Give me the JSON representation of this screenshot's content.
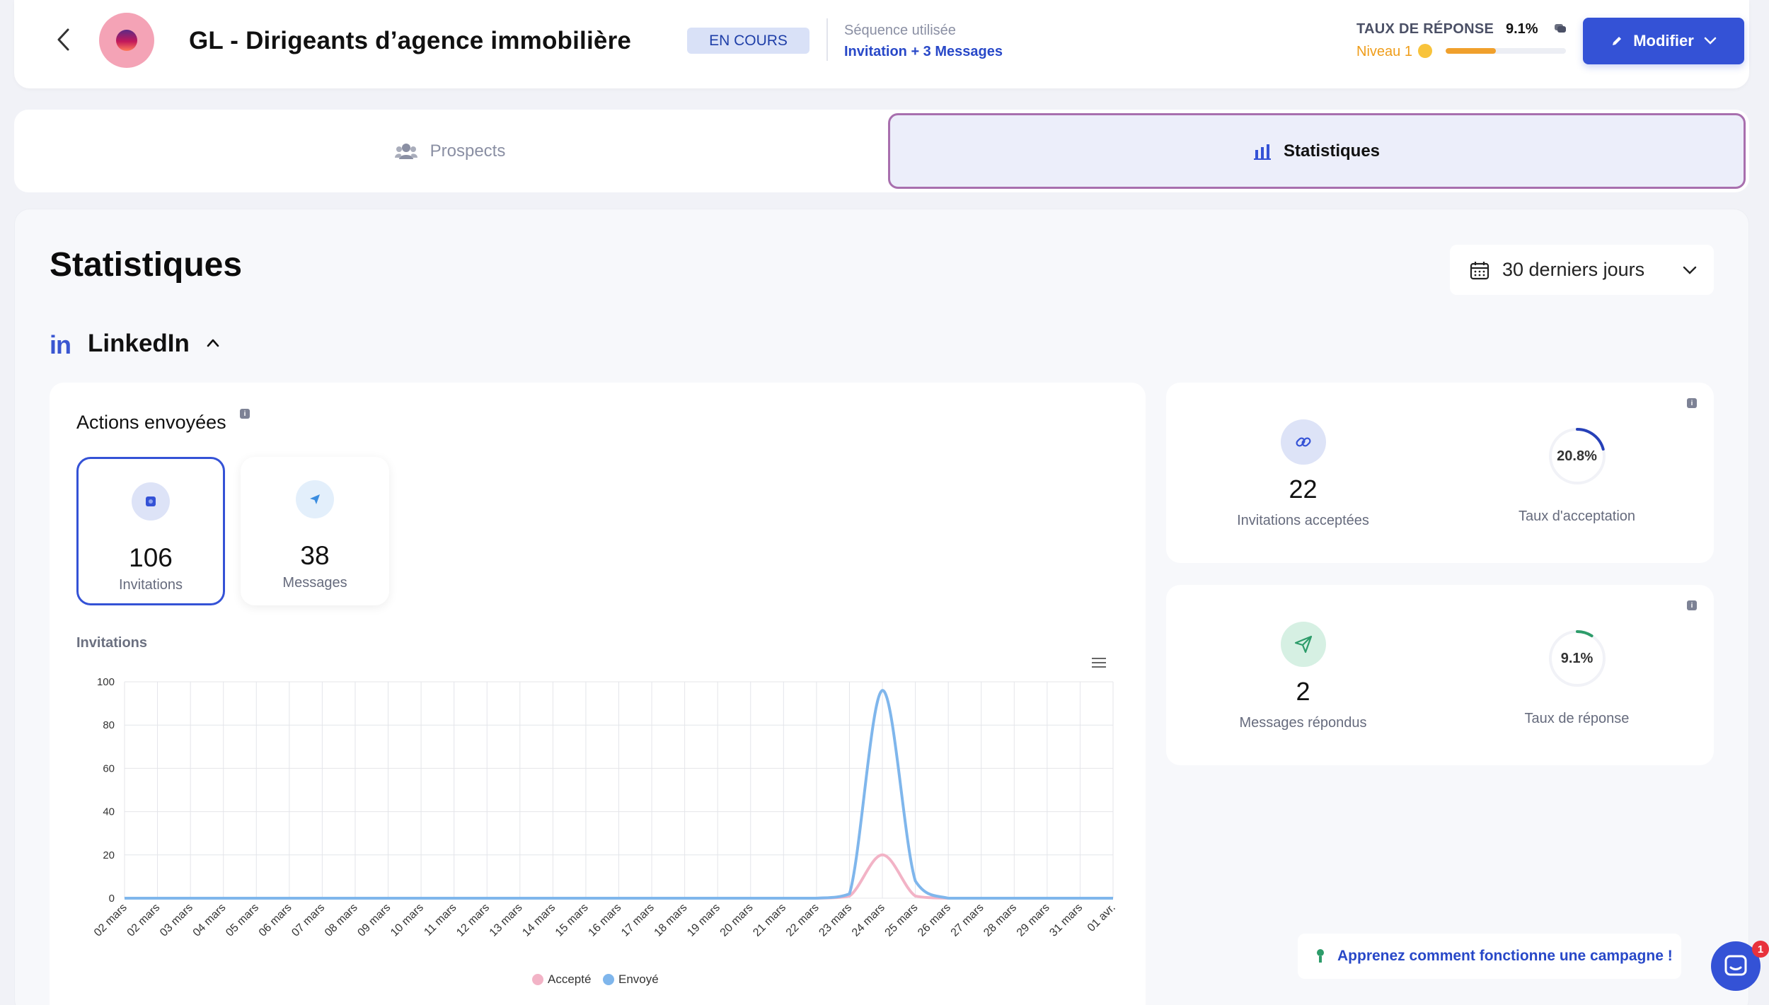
{
  "header": {
    "campaign_title": "GL - Dirigeants d’agence immobilière",
    "status": "EN COURS",
    "sequence_label": "Séquence utilisée",
    "sequence_value": "Invitation + 3 Messages",
    "response_rate_label": "TAUX DE RÉPONSE",
    "response_rate_value": "9.1%",
    "level_label": "Niveau 1",
    "level_progress": 0.42,
    "modify_label": "Modifier"
  },
  "tabs": [
    {
      "label": "Prospects",
      "active": false
    },
    {
      "label": "Statistiques",
      "active": true
    }
  ],
  "page": {
    "title": "Statistiques",
    "date_range": "30 derniers jours",
    "section": "LinkedIn"
  },
  "actions": {
    "title": "Actions envoyées",
    "invitations": {
      "value": "106",
      "label": "Invitations"
    },
    "messages": {
      "value": "38",
      "label": "Messages"
    },
    "chart_subtitle": "Invitations"
  },
  "side_stats": {
    "invitations_accepted": {
      "value": "22",
      "label": "Invitations acceptées"
    },
    "acceptance_rate": {
      "value": "20.8%",
      "label": "Taux d'acceptation",
      "fraction": 0.208
    },
    "messages_replied": {
      "value": "2",
      "label": "Messages répondus"
    },
    "response_rate": {
      "value": "9.1%",
      "label": "Taux de réponse",
      "fraction": 0.091
    }
  },
  "footer": {
    "learn_link": "Apprenez comment fonctionne une campagne !",
    "chat_badge": "1"
  },
  "colors": {
    "accent": "#3452d6",
    "sent": "#7fb6ec",
    "accepted": "#f2b3c6"
  },
  "chart_data": {
    "type": "line",
    "title": "",
    "xlabel": "",
    "ylabel": "",
    "ylim": [
      0,
      100
    ],
    "yticks": [
      0,
      20,
      40,
      60,
      80,
      100
    ],
    "grid": true,
    "legend_position": "bottom",
    "categories": [
      "02 mars",
      "02 mars",
      "03 mars",
      "04 mars",
      "05 mars",
      "06 mars",
      "07 mars",
      "08 mars",
      "09 mars",
      "10 mars",
      "11 mars",
      "12 mars",
      "13 mars",
      "14 mars",
      "15 mars",
      "16 mars",
      "17 mars",
      "18 mars",
      "19 mars",
      "20 mars",
      "21 mars",
      "22 mars",
      "23 mars",
      "24 mars",
      "25 mars",
      "26 mars",
      "27 mars",
      "28 mars",
      "29 mars",
      "31 mars",
      "01 avr."
    ],
    "series": [
      {
        "name": "Accepté",
        "values": [
          0,
          0,
          0,
          0,
          0,
          0,
          0,
          0,
          0,
          0,
          0,
          0,
          0,
          0,
          0,
          0,
          0,
          0,
          0,
          0,
          0,
          0,
          1,
          20,
          1,
          0,
          0,
          0,
          0,
          0,
          0
        ]
      },
      {
        "name": "Envoyé",
        "values": [
          0,
          0,
          0,
          0,
          0,
          0,
          0,
          0,
          0,
          0,
          0,
          0,
          0,
          0,
          0,
          0,
          0,
          0,
          0,
          0,
          0,
          0,
          2,
          96,
          8,
          0,
          0,
          0,
          0,
          0,
          0
        ]
      }
    ]
  }
}
